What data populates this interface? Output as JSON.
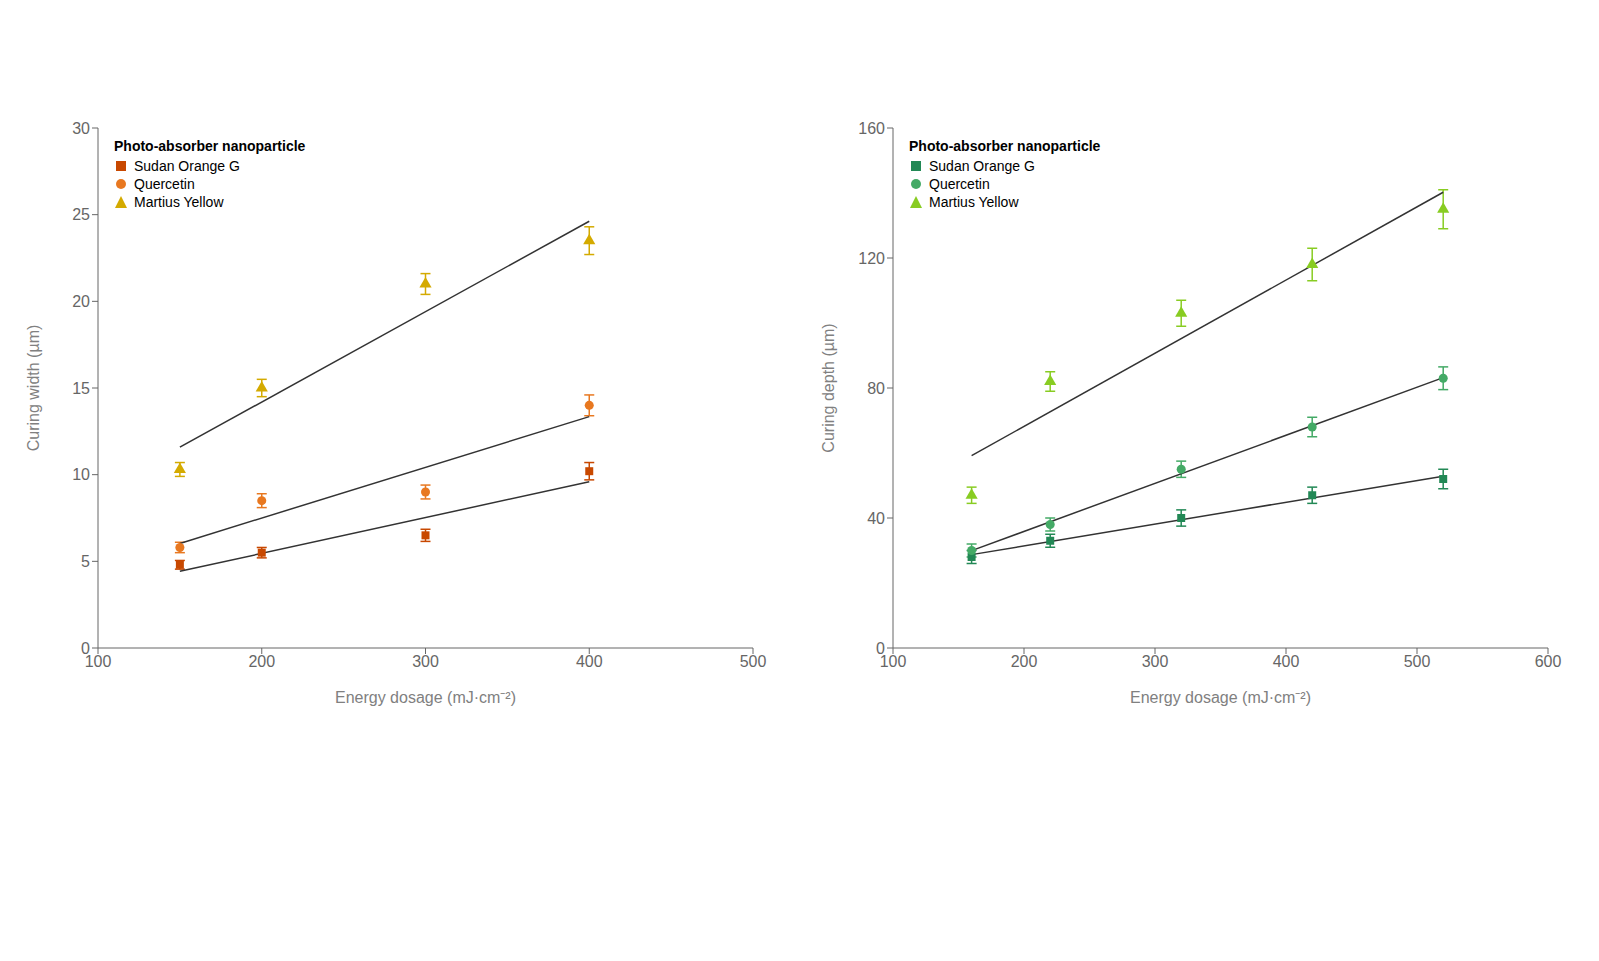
{
  "chart_data": [
    {
      "type": "scatter",
      "title": "Photo-absorber nanoparticle",
      "x_label": "Energy dosage (mJ·cm⁻²)",
      "y_label": "Curing width (µm)",
      "xlim": [
        100,
        500
      ],
      "ylim": [
        0,
        30
      ],
      "xticks": [
        100,
        200,
        300,
        400,
        500
      ],
      "yticks": [
        0,
        5,
        10,
        15,
        20,
        25,
        30
      ],
      "grid": false,
      "legend": "upper left",
      "series": [
        {
          "name": "Sudan Orange G",
          "color": "#c84800",
          "marker": "square",
          "x": [
            150,
            200,
            300,
            400
          ],
          "values": [
            4.8,
            5.5,
            6.5,
            10.2
          ],
          "yerr": [
            0.25,
            0.3,
            0.35,
            0.5
          ],
          "fit": {
            "x": [
              150,
              400
            ],
            "values": [
              4.4237,
              9.5932
            ],
            "color": "#333333",
            "line_style": "solid"
          }
        },
        {
          "name": "Quercetin",
          "color": "#e87820",
          "marker": "circle",
          "x": [
            150,
            200,
            300,
            400
          ],
          "values": [
            5.8,
            8.5,
            9.0,
            14.0
          ],
          "yerr": [
            0.3,
            0.4,
            0.4,
            0.6
          ],
          "fit": {
            "x": [
              150,
              400
            ],
            "values": [
              6.0339,
              13.3475
            ],
            "color": "#333333",
            "line_style": "solid"
          }
        },
        {
          "name": "Martius Yellow",
          "color": "#d4aa00",
          "marker": "triangle",
          "x": [
            150,
            200,
            300,
            400
          ],
          "values": [
            10.3,
            15.0,
            21.0,
            23.5
          ],
          "yerr": [
            0.4,
            0.5,
            0.6,
            0.8
          ],
          "fit": {
            "x": [
              150,
              400
            ],
            "values": [
              11.5847,
              24.6186
            ],
            "color": "#333333",
            "line_style": "solid"
          }
        }
      ]
    },
    {
      "type": "scatter",
      "title": "Photo-absorber nanoparticle",
      "x_label": "Energy dosage (mJ·cm⁻²)",
      "y_label": "Curing depth (µm)",
      "xlim": [
        100,
        600
      ],
      "ylim": [
        0,
        160
      ],
      "xticks": [
        100,
        200,
        300,
        400,
        500,
        600
      ],
      "yticks": [
        0,
        40,
        80,
        120,
        160
      ],
      "grid": false,
      "legend": "upper left",
      "series": [
        {
          "name": "Sudan Orange G",
          "color": "#228855",
          "marker": "square",
          "x": [
            160,
            220,
            320,
            420,
            520
          ],
          "values": [
            28.0,
            33.0,
            40.0,
            47.0,
            52.0
          ],
          "yerr": [
            2.0,
            2.0,
            2.5,
            2.5,
            3.0
          ],
          "fit": {
            "x": [
              160,
              520
            ],
            "values": [
              28.7317,
              52.878
            ],
            "color": "#333333",
            "line_style": "solid"
          }
        },
        {
          "name": "Quercetin",
          "color": "#44aa66",
          "marker": "circle",
          "x": [
            160,
            220,
            320,
            420,
            520
          ],
          "values": [
            30.0,
            38.0,
            55.0,
            68.0,
            83.0
          ],
          "yerr": [
            2.0,
            2.0,
            2.5,
            3.0,
            3.5
          ],
          "fit": {
            "x": [
              160,
              520
            ],
            "values": [
              29.9625,
              83.1857
            ],
            "color": "#333333",
            "line_style": "solid"
          }
        },
        {
          "name": "Martius Yellow",
          "color": "#88cc22",
          "marker": "triangle",
          "x": [
            160,
            220,
            320,
            420,
            520
          ],
          "values": [
            47.0,
            82.0,
            103.0,
            118.0,
            135.0
          ],
          "yerr": [
            2.5,
            3.0,
            4.0,
            5.0,
            6.0
          ],
          "fit": {
            "x": [
              160,
              520
            ],
            "values": [
              59.1764,
              140.227
            ],
            "color": "#333333",
            "line_style": "solid"
          }
        }
      ]
    }
  ]
}
